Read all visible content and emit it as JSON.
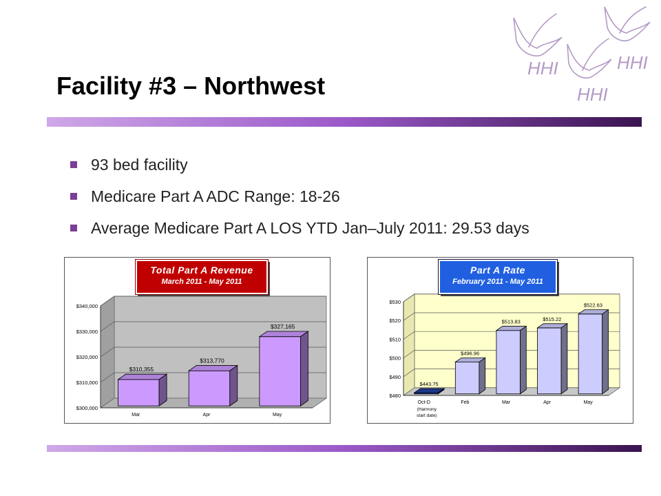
{
  "slide": {
    "title": "Facility #3 – Northwest",
    "bullets": [
      "93 bed facility",
      "Medicare Part A ADC Range: 18-26",
      "Average Medicare Part A LOS YTD Jan–July 2011: 29.53 days"
    ],
    "logo_text": "HHI",
    "accent_color": "#7b3f94"
  },
  "chart_data": [
    {
      "type": "bar",
      "title": "Total Part A Revenue",
      "subtitle": "March 2011 - May 2011",
      "categories": [
        "Mar",
        "Apr",
        "May"
      ],
      "values": [
        310355,
        313770,
        327165
      ],
      "data_labels": [
        "$310,355",
        "$313,770",
        "$327,165"
      ],
      "ylim": [
        300000,
        340000
      ],
      "yticks": [
        "$300,000",
        "$310,000",
        "$320,000",
        "$330,000",
        "$340,000"
      ],
      "tick_values": [
        300000,
        310000,
        320000,
        330000,
        340000
      ],
      "bar_color": "#cc99ff",
      "grid": true,
      "xlabel": "",
      "ylabel": ""
    },
    {
      "type": "bar",
      "title": "Part A Rate",
      "subtitle": "February 2011 - May 2011",
      "categories": [
        "Oct-D",
        "Feb",
        "Mar",
        "Apr",
        "May"
      ],
      "category_note": "(Harmony start date)",
      "values": [
        443.75,
        496.96,
        513.83,
        515.22,
        522.63
      ],
      "data_labels": [
        "$443.75",
        "$496.96",
        "$513.83",
        "$515.22",
        "$522.63"
      ],
      "ylim": [
        480,
        530
      ],
      "yticks": [
        "$480",
        "$490",
        "$500",
        "$510",
        "$520",
        "$530"
      ],
      "tick_values": [
        480,
        490,
        500,
        510,
        520,
        530
      ],
      "bar_colors": [
        "#1f3fa0",
        "#ccccff",
        "#ccccff",
        "#ccccff",
        "#ccccff"
      ],
      "grid": true,
      "xlabel": "",
      "ylabel": ""
    }
  ]
}
